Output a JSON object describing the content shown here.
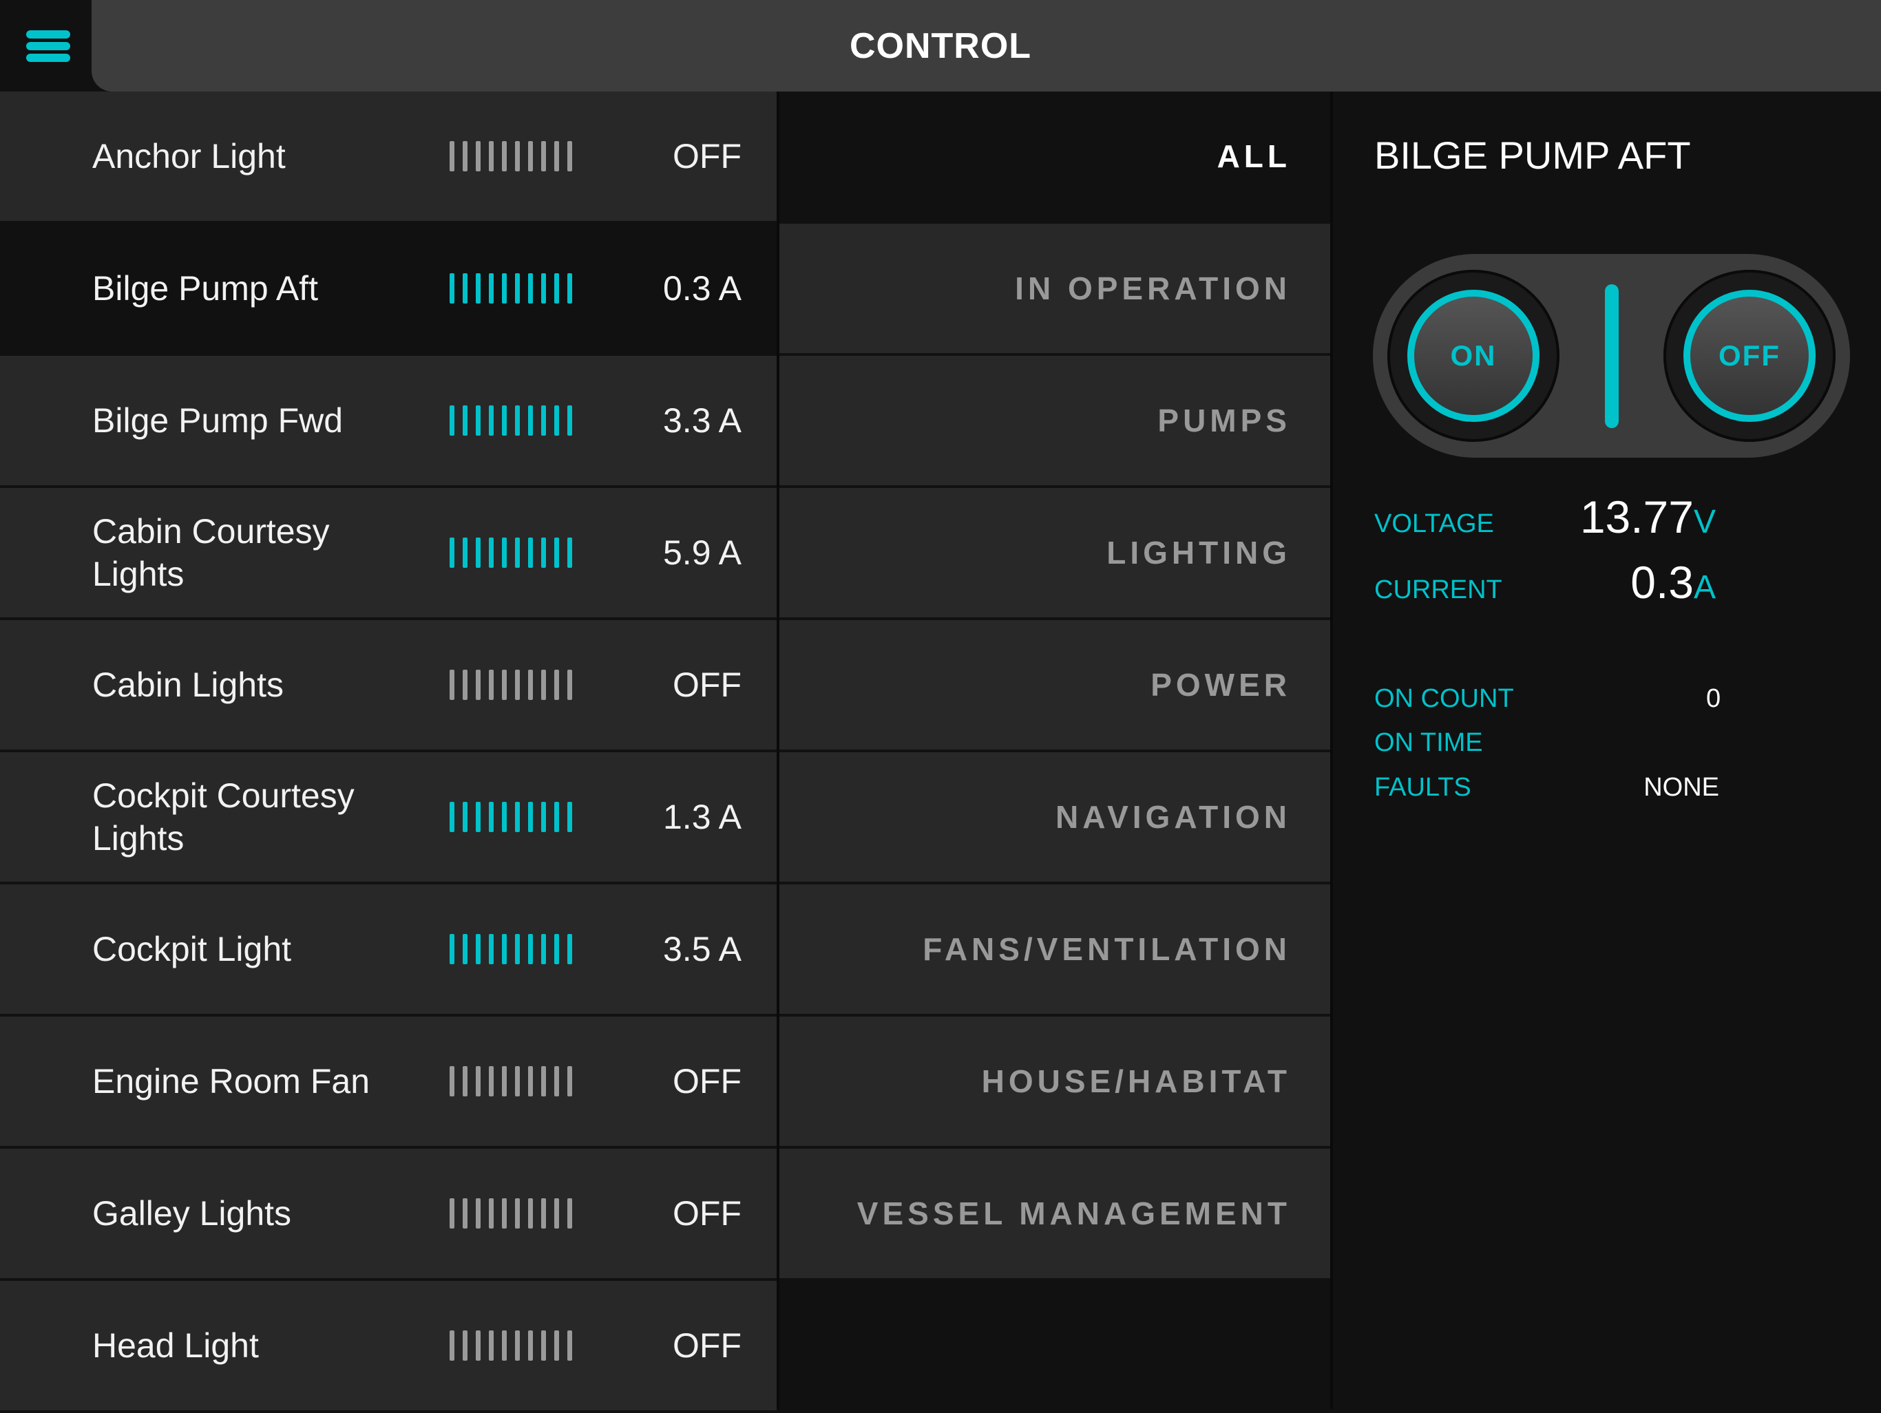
{
  "header": {
    "title": "CONTROL",
    "menu_icon": "hamburger-menu-icon"
  },
  "accent_color": "#00c2cb",
  "circuits": [
    {
      "name": "Anchor Light",
      "value": "OFF",
      "on": false
    },
    {
      "name": "Bilge Pump Aft",
      "value": "0.3 A",
      "on": true,
      "selected": true
    },
    {
      "name": "Bilge Pump Fwd",
      "value": "3.3 A",
      "on": true
    },
    {
      "name": "Cabin Courtesy Lights",
      "value": "5.9 A",
      "on": true
    },
    {
      "name": "Cabin Lights",
      "value": "OFF",
      "on": false
    },
    {
      "name": "Cockpit Courtesy Lights",
      "value": "1.3 A",
      "on": true
    },
    {
      "name": "Cockpit Light",
      "value": "3.5 A",
      "on": true
    },
    {
      "name": "Engine Room Fan",
      "value": "OFF",
      "on": false
    },
    {
      "name": "Galley Lights",
      "value": "OFF",
      "on": false
    },
    {
      "name": "Head Light",
      "value": "OFF",
      "on": false
    }
  ],
  "categories": [
    {
      "label": "ALL",
      "selected": true
    },
    {
      "label": "IN OPERATION"
    },
    {
      "label": "PUMPS"
    },
    {
      "label": "LIGHTING"
    },
    {
      "label": "POWER"
    },
    {
      "label": "NAVIGATION"
    },
    {
      "label": "FANS/VENTILATION"
    },
    {
      "label": "HOUSE/HABITAT"
    },
    {
      "label": "VESSEL MANAGEMENT"
    }
  ],
  "detail": {
    "title": "BILGE PUMP AFT",
    "on_label": "ON",
    "off_label": "OFF",
    "voltage_label": "VOLTAGE",
    "voltage_value": "13.77",
    "voltage_unit": "V",
    "current_label": "CURRENT",
    "current_value": "0.3",
    "current_unit": "A",
    "on_count_label": "ON COUNT",
    "on_count_value": "0",
    "on_time_label": "ON TIME",
    "faults_label": "FAULTS",
    "faults_value": "NONE"
  }
}
